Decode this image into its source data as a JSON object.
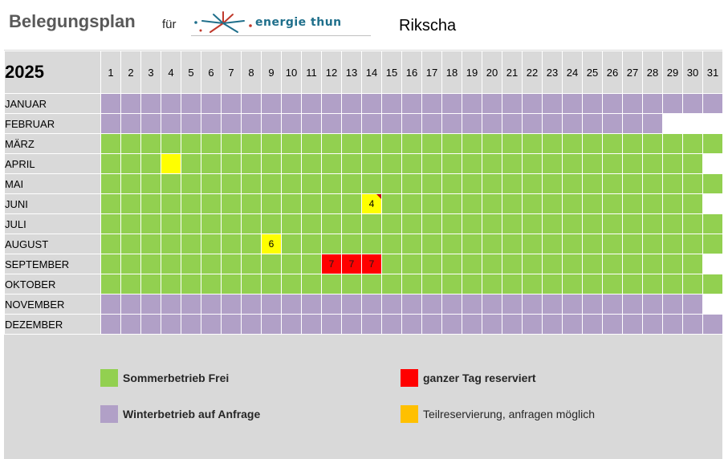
{
  "header": {
    "title": "Belegungsplan",
    "fuer": "für",
    "logo_text": "energie thun",
    "object_name": "Rikscha"
  },
  "calendar": {
    "year": "2025",
    "day_numbers": [
      "1",
      "2",
      "3",
      "4",
      "5",
      "6",
      "7",
      "8",
      "9",
      "10",
      "11",
      "12",
      "13",
      "14",
      "15",
      "16",
      "17",
      "18",
      "19",
      "20",
      "21",
      "22",
      "23",
      "24",
      "25",
      "26",
      "27",
      "28",
      "29",
      "30",
      "31"
    ],
    "months": [
      {
        "name": "JANUAR",
        "days": 31,
        "season": "winter"
      },
      {
        "name": "FEBRUAR",
        "days": 28,
        "season": "winter"
      },
      {
        "name": "MÄRZ",
        "days": 31,
        "season": "summer"
      },
      {
        "name": "APRIL",
        "days": 30,
        "season": "summer"
      },
      {
        "name": "MAI",
        "days": 31,
        "season": "summer"
      },
      {
        "name": "JUNI",
        "days": 30,
        "season": "summer"
      },
      {
        "name": "JULI",
        "days": 31,
        "season": "summer"
      },
      {
        "name": "AUGUST",
        "days": 31,
        "season": "summer"
      },
      {
        "name": "SEPTEMBER",
        "days": 30,
        "season": "summer"
      },
      {
        "name": "OKTOBER",
        "days": 31,
        "season": "summer"
      },
      {
        "name": "NOVEMBER",
        "days": 30,
        "season": "winter"
      },
      {
        "name": "DEZEMBER",
        "days": 31,
        "season": "winter"
      }
    ],
    "bookings": [
      {
        "month": "APRIL",
        "day": 4,
        "type": "partial",
        "label": ""
      },
      {
        "month": "JUNI",
        "day": 14,
        "type": "partial",
        "label": "4",
        "flag": true
      },
      {
        "month": "AUGUST",
        "day": 9,
        "type": "partial",
        "label": "6"
      },
      {
        "month": "SEPTEMBER",
        "day": 12,
        "type": "full",
        "label": "7"
      },
      {
        "month": "SEPTEMBER",
        "day": 13,
        "type": "full",
        "label": "7"
      },
      {
        "month": "SEPTEMBER",
        "day": 14,
        "type": "full",
        "label": "7"
      }
    ]
  },
  "legend": {
    "summer_label": "Sommerbetrieb Frei",
    "winter_label": "Winterbetrieb auf Anfrage",
    "full_label": "ganzer Tag reserviert",
    "partial_label": "Teilreservierung, anfragen möglich"
  },
  "colors": {
    "summer": "#92d050",
    "winter": "#b1a0c7",
    "full": "#ff0000",
    "partial_cell": "#ffff00",
    "partial_legend": "#ffc000",
    "background": "#d9d9d9"
  }
}
